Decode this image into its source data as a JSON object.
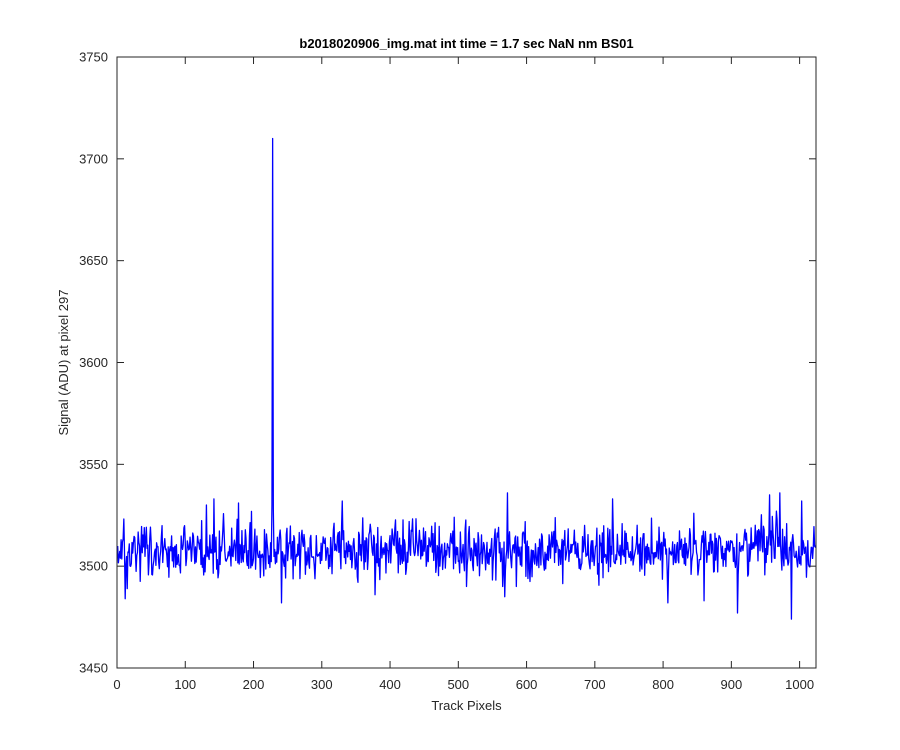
{
  "chart_data": {
    "type": "line",
    "title": "b2018020906_img.mat int time = 1.7 sec  NaN nm BS01",
    "xlabel": "Track Pixels",
    "ylabel": "Signal (ADU) at pixel 297",
    "xlim": [
      0,
      1024
    ],
    "ylim": [
      3450,
      3750
    ],
    "xticks": [
      0,
      100,
      200,
      300,
      400,
      500,
      600,
      700,
      800,
      900,
      1000
    ],
    "yticks": [
      3450,
      3500,
      3550,
      3600,
      3650,
      3700,
      3750
    ],
    "xtick_labels": [
      "0",
      "100",
      "200",
      "300",
      "400",
      "500",
      "600",
      "700",
      "800",
      "900",
      "1000"
    ],
    "ytick_labels": [
      "3450",
      "3500",
      "3550",
      "3600",
      "3650",
      "3700",
      "3750"
    ],
    "grid": false,
    "line_color": "#0000ff",
    "series": [
      {
        "x_start": 1,
        "x_end": 1024,
        "noise_model": {
          "baseline": 3508,
          "jitter": 6.5,
          "seed": 297
        },
        "features": [
          {
            "x": 12,
            "y": 3484
          },
          {
            "x": 15,
            "y": 3489
          },
          {
            "x": 131,
            "y": 3530
          },
          {
            "x": 142,
            "y": 3533
          },
          {
            "x": 178,
            "y": 3531
          },
          {
            "x": 227,
            "y": 3530
          },
          {
            "x": 228,
            "y": 3710
          },
          {
            "x": 229,
            "y": 3528
          },
          {
            "x": 241,
            "y": 3482
          },
          {
            "x": 330,
            "y": 3532
          },
          {
            "x": 378,
            "y": 3486
          },
          {
            "x": 568,
            "y": 3485
          },
          {
            "x": 572,
            "y": 3536
          },
          {
            "x": 726,
            "y": 3533
          },
          {
            "x": 807,
            "y": 3482
          },
          {
            "x": 860,
            "y": 3483
          },
          {
            "x": 909,
            "y": 3477
          },
          {
            "x": 956,
            "y": 3535
          },
          {
            "x": 971,
            "y": 3536
          },
          {
            "x": 988,
            "y": 3474
          },
          {
            "x": 1003,
            "y": 3532
          }
        ]
      }
    ]
  }
}
